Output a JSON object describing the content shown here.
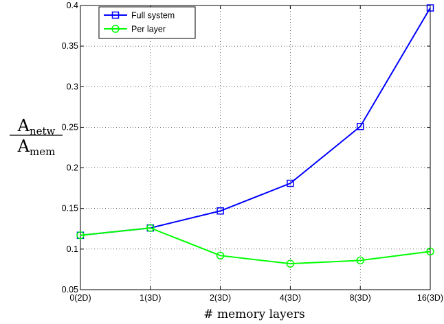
{
  "chart_data": {
    "type": "line",
    "categories": [
      "0(2D)",
      "1(3D)",
      "2(3D)",
      "4(3D)",
      "8(3D)",
      "16(3D)"
    ],
    "series": [
      {
        "name": "Full system",
        "values": [
          0.117,
          0.126,
          0.147,
          0.181,
          0.251,
          0.397
        ],
        "color": "#0000ff",
        "marker": "square"
      },
      {
        "name": "Per layer",
        "values": [
          0.117,
          0.126,
          0.092,
          0.082,
          0.086,
          0.097
        ],
        "color": "#00ff00",
        "marker": "circle"
      }
    ],
    "xlabel": "# memory layers",
    "ylabel": {
      "numerator": "A",
      "numerator_sub": "netw",
      "denominator": "A",
      "denominator_sub": "mem"
    },
    "ylim": [
      0.05,
      0.4
    ],
    "yticks": [
      "0.05",
      "0.1",
      "0.15",
      "0.2",
      "0.25",
      "0.3",
      "0.35",
      "0.4"
    ],
    "grid": "dotted",
    "legend_position": "top-left"
  }
}
